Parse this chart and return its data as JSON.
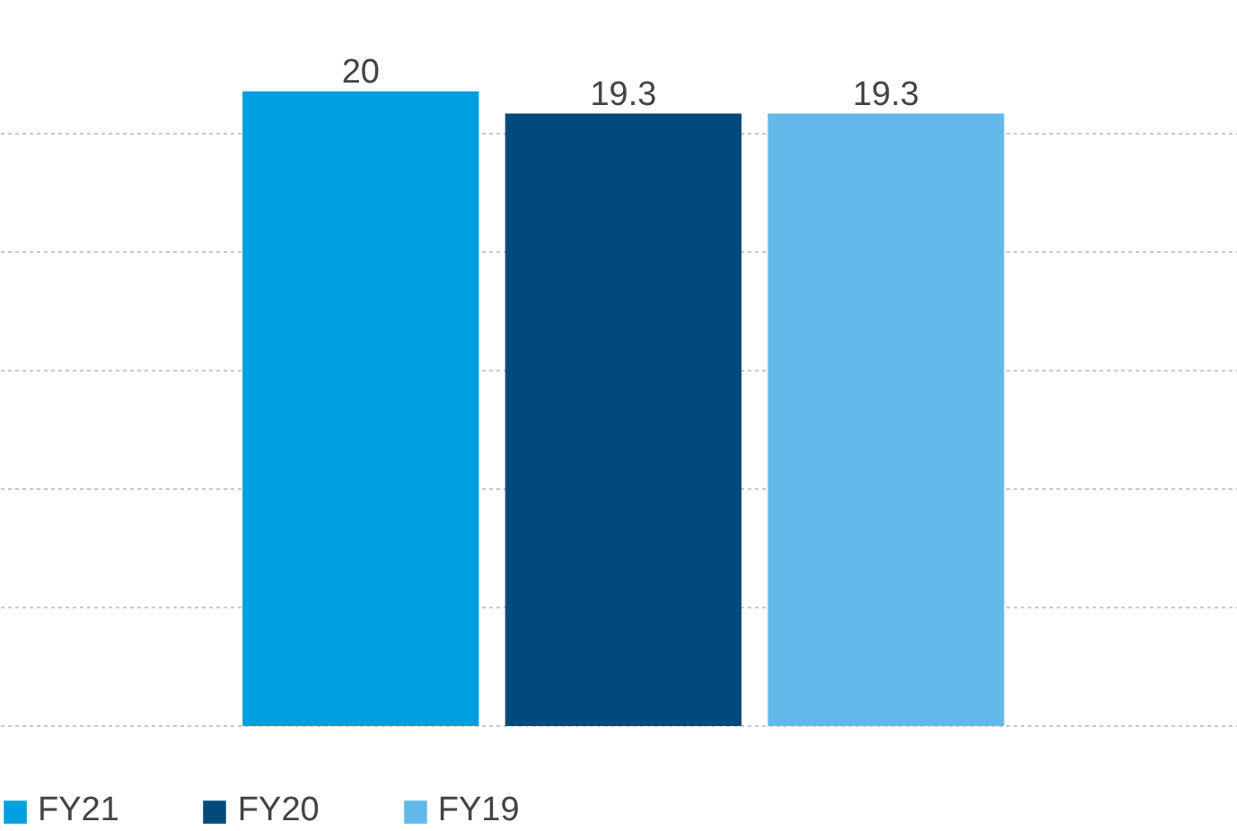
{
  "chart_data": {
    "type": "bar",
    "categories": [
      null
    ],
    "series": [
      {
        "name": "FY21",
        "color": "#00a0e0",
        "values": [
          20
        ]
      },
      {
        "name": "FY20",
        "color": "#004b7c",
        "values": [
          19.3
        ]
      },
      {
        "name": "FY19",
        "color": "#62b9e9",
        "values": [
          19.3
        ]
      }
    ],
    "data_labels": true,
    "grid": "y",
    "legend": "bottom left",
    "tick_labels": false
  }
}
